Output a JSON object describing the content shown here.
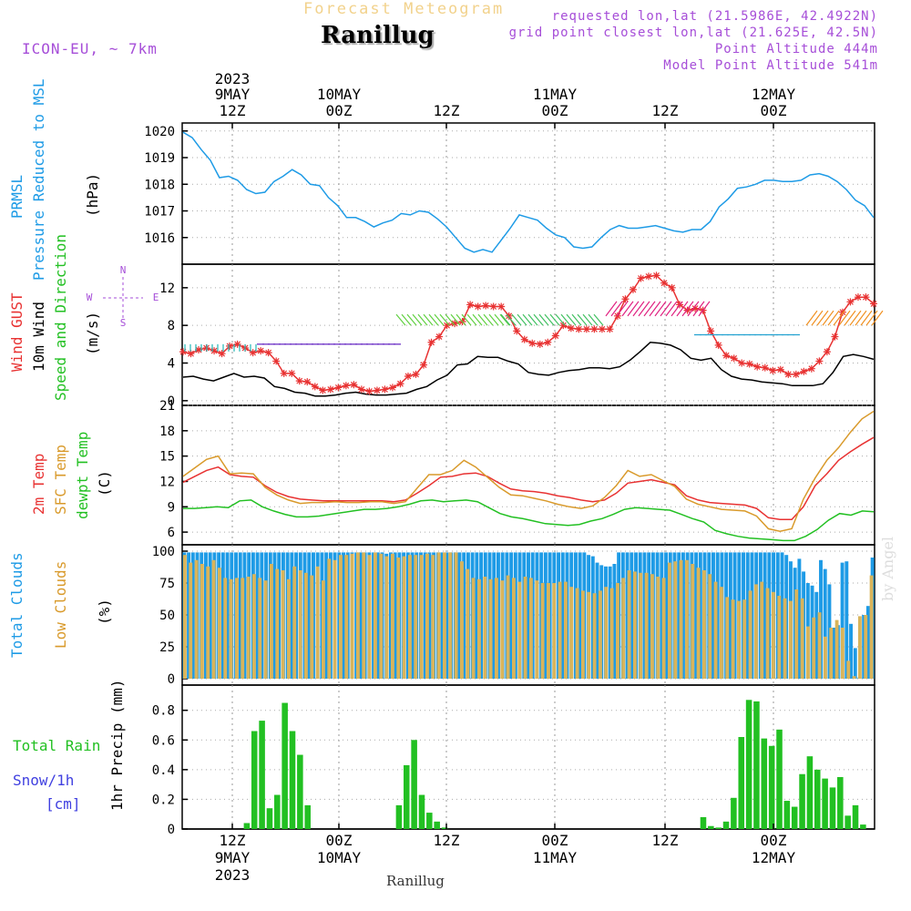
{
  "header": {
    "title": "Forecast Meteogram",
    "location": "Ranillug",
    "model": "ICON-EU, ~ 7km",
    "requested": "requested lon,lat (21.5986E, 42.4922N)",
    "grid_point": "grid point closest lon,lat (21.625E, 42.5N)",
    "point_altitude": "Point Altitude 444m",
    "model_altitude": "Model Point Altitude 541m"
  },
  "footer": {
    "location": "Ranillug",
    "signature": "by Angel"
  },
  "colors": {
    "pressure": "#1e9be6",
    "gust": "#e83232",
    "wind": "#000000",
    "temp2m": "#e83232",
    "sfc": "#d99a2b",
    "dewpt": "#22c022",
    "total_clouds": "#1e9be6",
    "low_clouds": "#d9b45a",
    "rain": "#22c022",
    "snow": "#4040e0",
    "purple": "#a64ed8"
  },
  "chart_data": [
    {
      "type": "line",
      "id": "pressure",
      "ylabel_lines": [
        "PRMSL",
        "Pressure Reduced to MSL"
      ],
      "units": "(hPa)",
      "ylim": [
        1015.0,
        1020.3
      ],
      "yticks": [
        1016,
        1017,
        1018,
        1019,
        1020
      ],
      "series": [
        {
          "name": "PRMSL",
          "color": "#1e9be6",
          "values": [
            1019.95,
            1019.75,
            1019.3,
            1018.9,
            1018.25,
            1018.3,
            1018.15,
            1017.8,
            1017.65,
            1017.7,
            1018.1,
            1018.3,
            1018.55,
            1018.35,
            1018.0,
            1017.95,
            1017.5,
            1017.2,
            1016.75,
            1016.75,
            1016.6,
            1016.4,
            1016.55,
            1016.65,
            1016.9,
            1016.85,
            1017.0,
            1016.95,
            1016.7,
            1016.4,
            1016.0,
            1015.6,
            1015.45,
            1015.55,
            1015.45,
            1015.9,
            1016.35,
            1016.85,
            1016.75,
            1016.65,
            1016.35,
            1016.1,
            1016.0,
            1015.65,
            1015.6,
            1015.65,
            1016.0,
            1016.3,
            1016.45,
            1016.35,
            1016.35,
            1016.4,
            1016.45,
            1016.35,
            1016.25,
            1016.2,
            1016.3,
            1016.3,
            1016.6,
            1017.15,
            1017.45,
            1017.85,
            1017.9,
            1018.0,
            1018.15,
            1018.15,
            1018.1,
            1018.1,
            1018.15,
            1018.35,
            1018.4,
            1018.3,
            1018.1,
            1017.8,
            1017.4,
            1017.2,
            1016.75
          ]
        }
      ]
    },
    {
      "type": "line",
      "id": "wind",
      "ylabel_lines": [
        "Wind GUST",
        "10m Wind",
        "Speed and Direction"
      ],
      "units": "(m/s)",
      "compass": [
        "N",
        "W",
        "E",
        "S"
      ],
      "ylim": [
        -0.5,
        14.5
      ],
      "yticks": [
        0,
        4,
        8,
        12
      ],
      "series": [
        {
          "name": "Wind GUST",
          "color": "#e83232",
          "marker": "star",
          "values": [
            5.2,
            5.0,
            5.4,
            5.6,
            5.3,
            5.0,
            5.8,
            6.0,
            5.6,
            5.1,
            5.3,
            5.1,
            4.2,
            2.9,
            2.9,
            2.1,
            2.0,
            1.5,
            1.1,
            1.2,
            1.4,
            1.6,
            1.7,
            1.2,
            1.0,
            1.1,
            1.2,
            1.4,
            1.8,
            2.6,
            2.8,
            3.8,
            6.2,
            6.8,
            8.0,
            8.2,
            8.4,
            10.2,
            10.0,
            10.1,
            10.0,
            10.0,
            9.0,
            7.4,
            6.5,
            6.1,
            6.0,
            6.2,
            6.9,
            8.0,
            7.7,
            7.6,
            7.6,
            7.6,
            7.6,
            7.6,
            9.0,
            10.8,
            11.8,
            13.0,
            13.2,
            13.3,
            12.5,
            12.0,
            10.2,
            9.6,
            9.8,
            9.6,
            7.4,
            5.9,
            4.8,
            4.5,
            4.0,
            3.9,
            3.6,
            3.5,
            3.2,
            3.3,
            2.8,
            2.8,
            3.1,
            3.4,
            4.2,
            5.2,
            6.8,
            9.4,
            10.5,
            11.0,
            11.0,
            10.3
          ]
        },
        {
          "name": "10m Wind",
          "color": "#000000",
          "values": [
            2.5,
            2.6,
            2.3,
            2.1,
            2.5,
            2.9,
            2.5,
            2.6,
            2.4,
            1.5,
            1.3,
            0.9,
            0.8,
            0.5,
            0.5,
            0.6,
            0.8,
            0.9,
            0.7,
            0.6,
            0.6,
            0.7,
            0.8,
            1.2,
            1.5,
            2.2,
            2.7,
            3.8,
            3.9,
            4.7,
            4.6,
            4.6,
            4.2,
            3.9,
            3.0,
            2.8,
            2.7,
            3.0,
            3.2,
            3.3,
            3.5,
            3.5,
            3.4,
            3.6,
            4.3,
            5.2,
            6.2,
            6.1,
            5.9,
            5.4,
            4.5,
            4.3,
            4.5,
            3.3,
            2.6,
            2.3,
            2.2,
            2.0,
            1.9,
            1.8,
            1.6,
            1.6,
            1.6,
            1.8,
            3.0,
            4.7,
            4.9,
            4.7,
            4.4
          ]
        }
      ]
    },
    {
      "type": "line",
      "id": "temperature",
      "ylabel_lines": [
        "2m Temp",
        "SFC Temp",
        "dewpt Temp"
      ],
      "units": "(C)",
      "ylim": [
        4.5,
        21.0
      ],
      "yticks": [
        6,
        9,
        12,
        15,
        18,
        21
      ],
      "series": [
        {
          "name": "2m Temp",
          "color": "#e83232",
          "values": [
            11.9,
            12.6,
            13.3,
            13.7,
            12.8,
            12.6,
            12.5,
            11.5,
            10.7,
            10.2,
            9.9,
            9.8,
            9.7,
            9.7,
            9.7,
            9.7,
            9.7,
            9.7,
            9.6,
            9.8,
            10.6,
            11.5,
            12.5,
            12.6,
            12.9,
            13.0,
            12.6,
            11.8,
            11.1,
            10.9,
            10.8,
            10.6,
            10.3,
            10.1,
            9.8,
            9.6,
            9.8,
            10.6,
            11.8,
            12.0,
            12.2,
            11.9,
            11.6,
            10.3,
            9.8,
            9.5,
            9.4,
            9.3,
            9.2,
            8.8,
            7.7,
            7.5,
            7.5,
            9.0,
            11.5,
            12.9,
            14.5,
            15.5,
            16.4,
            17.2
          ]
        },
        {
          "name": "SFC Temp",
          "color": "#d99a2b",
          "values": [
            12.6,
            13.6,
            14.6,
            15.0,
            12.9,
            13.0,
            12.9,
            11.3,
            10.4,
            9.8,
            9.4,
            9.5,
            9.5,
            9.6,
            9.5,
            9.5,
            9.6,
            9.6,
            9.4,
            9.6,
            11.2,
            12.8,
            12.8,
            13.3,
            14.5,
            13.7,
            12.5,
            11.3,
            10.4,
            10.3,
            10.0,
            9.7,
            9.3,
            9.0,
            8.8,
            9.1,
            10.1,
            11.5,
            13.3,
            12.6,
            12.8,
            12.1,
            11.4,
            9.9,
            9.3,
            9.0,
            8.7,
            8.6,
            8.5,
            7.9,
            6.4,
            6.1,
            6.4,
            9.9,
            12.4,
            14.5,
            16.0,
            17.8,
            19.4,
            20.3
          ]
        },
        {
          "name": "dewpt Temp",
          "color": "#22c022",
          "values": [
            8.8,
            8.8,
            8.9,
            9.0,
            8.9,
            9.7,
            9.8,
            9.0,
            8.5,
            8.1,
            7.8,
            7.8,
            7.9,
            8.1,
            8.3,
            8.5,
            8.7,
            8.7,
            8.8,
            9.0,
            9.3,
            9.7,
            9.8,
            9.6,
            9.7,
            9.8,
            9.6,
            8.9,
            8.2,
            7.8,
            7.6,
            7.3,
            7.0,
            6.9,
            6.8,
            6.9,
            7.3,
            7.6,
            8.1,
            8.7,
            8.9,
            8.8,
            8.7,
            8.6,
            8.1,
            7.6,
            7.2,
            6.2,
            5.8,
            5.5,
            5.3,
            5.2,
            5.1,
            5.0,
            5.0,
            5.5,
            6.3,
            7.4,
            8.2,
            8.0,
            8.5,
            8.4
          ]
        }
      ]
    },
    {
      "type": "bar",
      "id": "clouds",
      "ylabel_lines": [
        "Total Clouds",
        "Low Clouds"
      ],
      "units": "(%)",
      "ylim": [
        -5,
        105
      ],
      "yticks": [
        0,
        25,
        50,
        75,
        100
      ],
      "series": [
        {
          "name": "Total Clouds",
          "color": "#1e9be6",
          "values": [
            99,
            99,
            99,
            99,
            99,
            99,
            99,
            99,
            99,
            99,
            99,
            99,
            99,
            99,
            99,
            99,
            99,
            99,
            99,
            99,
            99,
            99,
            99,
            99,
            99,
            99,
            99,
            99,
            99,
            99,
            99,
            99,
            99,
            99,
            99,
            99,
            99,
            99,
            99,
            99,
            99,
            99,
            99,
            99,
            99,
            99,
            99,
            98,
            99,
            99,
            99,
            99,
            99,
            99,
            99,
            99,
            99,
            99,
            99,
            99,
            99,
            99,
            99,
            99,
            99,
            99,
            99,
            99,
            99,
            99,
            99,
            99,
            99,
            99,
            99,
            99,
            99,
            99,
            99,
            99,
            99,
            99,
            99,
            99,
            99,
            99,
            99,
            99,
            99,
            99,
            99,
            99,
            99,
            99,
            97,
            96,
            91,
            89,
            88,
            88,
            90,
            99,
            99,
            99,
            99,
            99,
            99,
            99,
            99,
            99,
            99,
            99,
            99,
            99,
            99,
            99,
            99,
            99,
            99,
            99,
            99,
            99,
            99,
            99,
            99,
            99,
            99,
            99,
            99,
            99,
            99,
            99,
            99,
            99,
            99,
            99,
            99,
            99,
            99,
            99,
            97,
            92,
            87,
            94,
            84,
            75,
            73,
            68,
            93,
            86,
            74,
            40,
            42,
            91,
            92,
            43,
            24,
            1,
            50,
            57,
            95
          ]
        },
        {
          "name": "Low Clouds",
          "color": "#d9b45a",
          "values": [
            97,
            91,
            93,
            90,
            88,
            93,
            87,
            79,
            78,
            79,
            79,
            80,
            82,
            79,
            77,
            90,
            86,
            85,
            78,
            88,
            85,
            83,
            81,
            88,
            77,
            94,
            93,
            97,
            97,
            98,
            99,
            99,
            97,
            99,
            98,
            96,
            98,
            95,
            96,
            97,
            97,
            97,
            98,
            97,
            99,
            99,
            99,
            99,
            92,
            86,
            79,
            78,
            80,
            78,
            79,
            77,
            81,
            79,
            76,
            80,
            79,
            77,
            75,
            75,
            75,
            76,
            76,
            72,
            71,
            69,
            68,
            67,
            69,
            72,
            71,
            75,
            79,
            85,
            84,
            83,
            83,
            82,
            80,
            79,
            91,
            92,
            93,
            93,
            90,
            87,
            85,
            82,
            76,
            72,
            64,
            62,
            61,
            62,
            69,
            74,
            76,
            71,
            68,
            65,
            63,
            61,
            70,
            63,
            41,
            48,
            52,
            33,
            40,
            46,
            40,
            14,
            2,
            49,
            50,
            81
          ]
        }
      ]
    },
    {
      "type": "bar",
      "id": "precip",
      "ylabel_lines": [
        "Total Rain",
        "Snow/1h",
        "[cm]"
      ],
      "units": "1hr Precip (mm)",
      "ylim": [
        0,
        0.97
      ],
      "yticks": [
        0,
        0.2,
        0.4,
        0.6,
        0.8
      ],
      "series": [
        {
          "name": "Total Rain",
          "color": "#22c022",
          "values": [
            0,
            0,
            0,
            0,
            0,
            0,
            0,
            0,
            0.04,
            0.66,
            0.73,
            0.14,
            0.23,
            0.85,
            0.66,
            0.5,
            0.16,
            0,
            0,
            0,
            0,
            0,
            0,
            0,
            0,
            0,
            0,
            0,
            0.16,
            0.43,
            0.6,
            0.23,
            0.11,
            0.05,
            0.01,
            0,
            0,
            0,
            0,
            0,
            0,
            0,
            0,
            0,
            0,
            0,
            0,
            0,
            0,
            0,
            0,
            0,
            0,
            0,
            0,
            0,
            0,
            0,
            0,
            0,
            0,
            0,
            0,
            0,
            0,
            0,
            0,
            0,
            0.08,
            0.02,
            0.01,
            0.05,
            0.21,
            0.62,
            0.87,
            0.86,
            0.61,
            0.56,
            0.67,
            0.19,
            0.15,
            0.37,
            0.49,
            0.4,
            0.34,
            0.28,
            0.35,
            0.09,
            0.16,
            0.03,
            0
          ]
        }
      ]
    }
  ],
  "time_axis": {
    "top_labels": [
      {
        "line1": "2023",
        "line2": "9MAY",
        "line3": "12Z"
      },
      {
        "line1": "",
        "line2": "10MAY",
        "line3": "00Z"
      },
      {
        "line1": "",
        "line2": "",
        "line3": "12Z"
      },
      {
        "line1": "",
        "line2": "11MAY",
        "line3": "00Z"
      },
      {
        "line1": "",
        "line2": "",
        "line3": "12Z"
      },
      {
        "line1": "",
        "line2": "12MAY",
        "line3": "00Z"
      }
    ],
    "bottom_labels": [
      {
        "line1": "12Z",
        "line2": "9MAY",
        "line3": "2023"
      },
      {
        "line1": "00Z",
        "line2": "10MAY",
        "line3": ""
      },
      {
        "line1": "12Z",
        "line2": "",
        "line3": ""
      },
      {
        "line1": "00Z",
        "line2": "11MAY",
        "line3": ""
      },
      {
        "line1": "12Z",
        "line2": "",
        "line3": ""
      },
      {
        "line1": "00Z",
        "line2": "12MAY",
        "line3": ""
      }
    ]
  }
}
